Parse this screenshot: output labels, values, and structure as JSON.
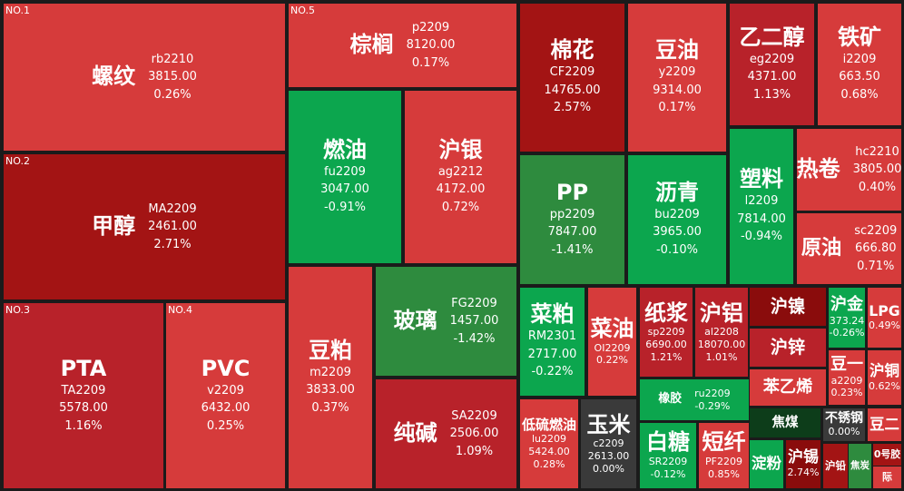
{
  "tiles": [
    {
      "rank": "NO.1",
      "name": "螺纹",
      "code": "rb2210",
      "price": "3815.00",
      "change": "0.26%"
    },
    {
      "rank": "NO.2",
      "name": "甲醇",
      "code": "MA2209",
      "price": "2461.00",
      "change": "2.71%"
    },
    {
      "rank": "NO.3",
      "name": "PTA",
      "code": "TA2209",
      "price": "5578.00",
      "change": "1.16%"
    },
    {
      "rank": "NO.4",
      "name": "PVC",
      "code": "v2209",
      "price": "6432.00",
      "change": "0.25%"
    },
    {
      "rank": "NO.5",
      "name": "棕榈",
      "code": "p2209",
      "price": "8120.00",
      "change": "0.17%"
    },
    {
      "name": "燃油",
      "code": "fu2209",
      "price": "3047.00",
      "change": "-0.91%"
    },
    {
      "name": "沪银",
      "code": "ag2212",
      "price": "4172.00",
      "change": "0.72%"
    },
    {
      "name": "豆粕",
      "code": "m2209",
      "price": "3833.00",
      "change": "0.37%"
    },
    {
      "name": "玻璃",
      "code": "FG2209",
      "price": "1457.00",
      "change": "-1.42%"
    },
    {
      "name": "纯碱",
      "code": "SA2209",
      "price": "2506.00",
      "change": "1.09%"
    },
    {
      "name": "棉花",
      "code": "CF2209",
      "price": "14765.00",
      "change": "2.57%"
    },
    {
      "name": "豆油",
      "code": "y2209",
      "price": "9314.00",
      "change": "0.17%"
    },
    {
      "name": "乙二醇",
      "code": "eg2209",
      "price": "4371.00",
      "change": "1.13%"
    },
    {
      "name": "铁矿",
      "code": "i2209",
      "price": "663.50",
      "change": "0.68%"
    },
    {
      "name": "PP",
      "code": "pp2209",
      "price": "7847.00",
      "change": "-1.41%"
    },
    {
      "name": "沥青",
      "code": "bu2209",
      "price": "3965.00",
      "change": "-0.10%"
    },
    {
      "name": "塑料",
      "code": "l2209",
      "price": "7814.00",
      "change": "-0.94%"
    },
    {
      "name": "热卷",
      "code": "hc2210",
      "price": "3805.00",
      "change": "0.40%"
    },
    {
      "name": "原油",
      "code": "sc2209",
      "price": "666.80",
      "change": "0.71%"
    },
    {
      "name": "菜粕",
      "code": "RM2301",
      "price": "2717.00",
      "change": "-0.22%"
    },
    {
      "name": "菜油",
      "code": "OI2209",
      "change": "0.22%"
    },
    {
      "name": "纸浆",
      "code": "sp2209",
      "price": "6690.00",
      "change": "1.21%"
    },
    {
      "name": "沪铝",
      "code": "al2208",
      "price": "18070.00",
      "change": "1.01%"
    },
    {
      "name": "沪镍"
    },
    {
      "name": "沪锌"
    },
    {
      "name": "沪金",
      "price": "373.24",
      "change": "-0.26%"
    },
    {
      "name": "LPG",
      "change": "0.49%"
    },
    {
      "name": "豆一",
      "code": "a2209",
      "change": "0.23%"
    },
    {
      "name": "沪铜",
      "change": "0.62%"
    },
    {
      "name": "苯乙烯"
    },
    {
      "name": "橡胶",
      "code": "ru2209",
      "change": "-0.29%"
    },
    {
      "name": "低硫燃油",
      "code": "lu2209",
      "price": "5424.00",
      "change": "0.28%"
    },
    {
      "name": "玉米",
      "code": "c2209",
      "price": "2613.00",
      "change": "0.00%"
    },
    {
      "name": "白糖",
      "code": "SR2209",
      "change": "-0.12%"
    },
    {
      "name": "短纤",
      "code": "PF2209",
      "change": "0.85%"
    },
    {
      "name": "焦煤"
    },
    {
      "name": "不锈钢",
      "change": "0.00%"
    },
    {
      "name": "豆二"
    },
    {
      "name": "淀粉"
    },
    {
      "name": "沪锡",
      "change": "2.74%"
    },
    {
      "name": "沪铅"
    },
    {
      "name": "焦炭"
    },
    {
      "name": "0号胶"
    },
    {
      "name": "际"
    }
  ]
}
